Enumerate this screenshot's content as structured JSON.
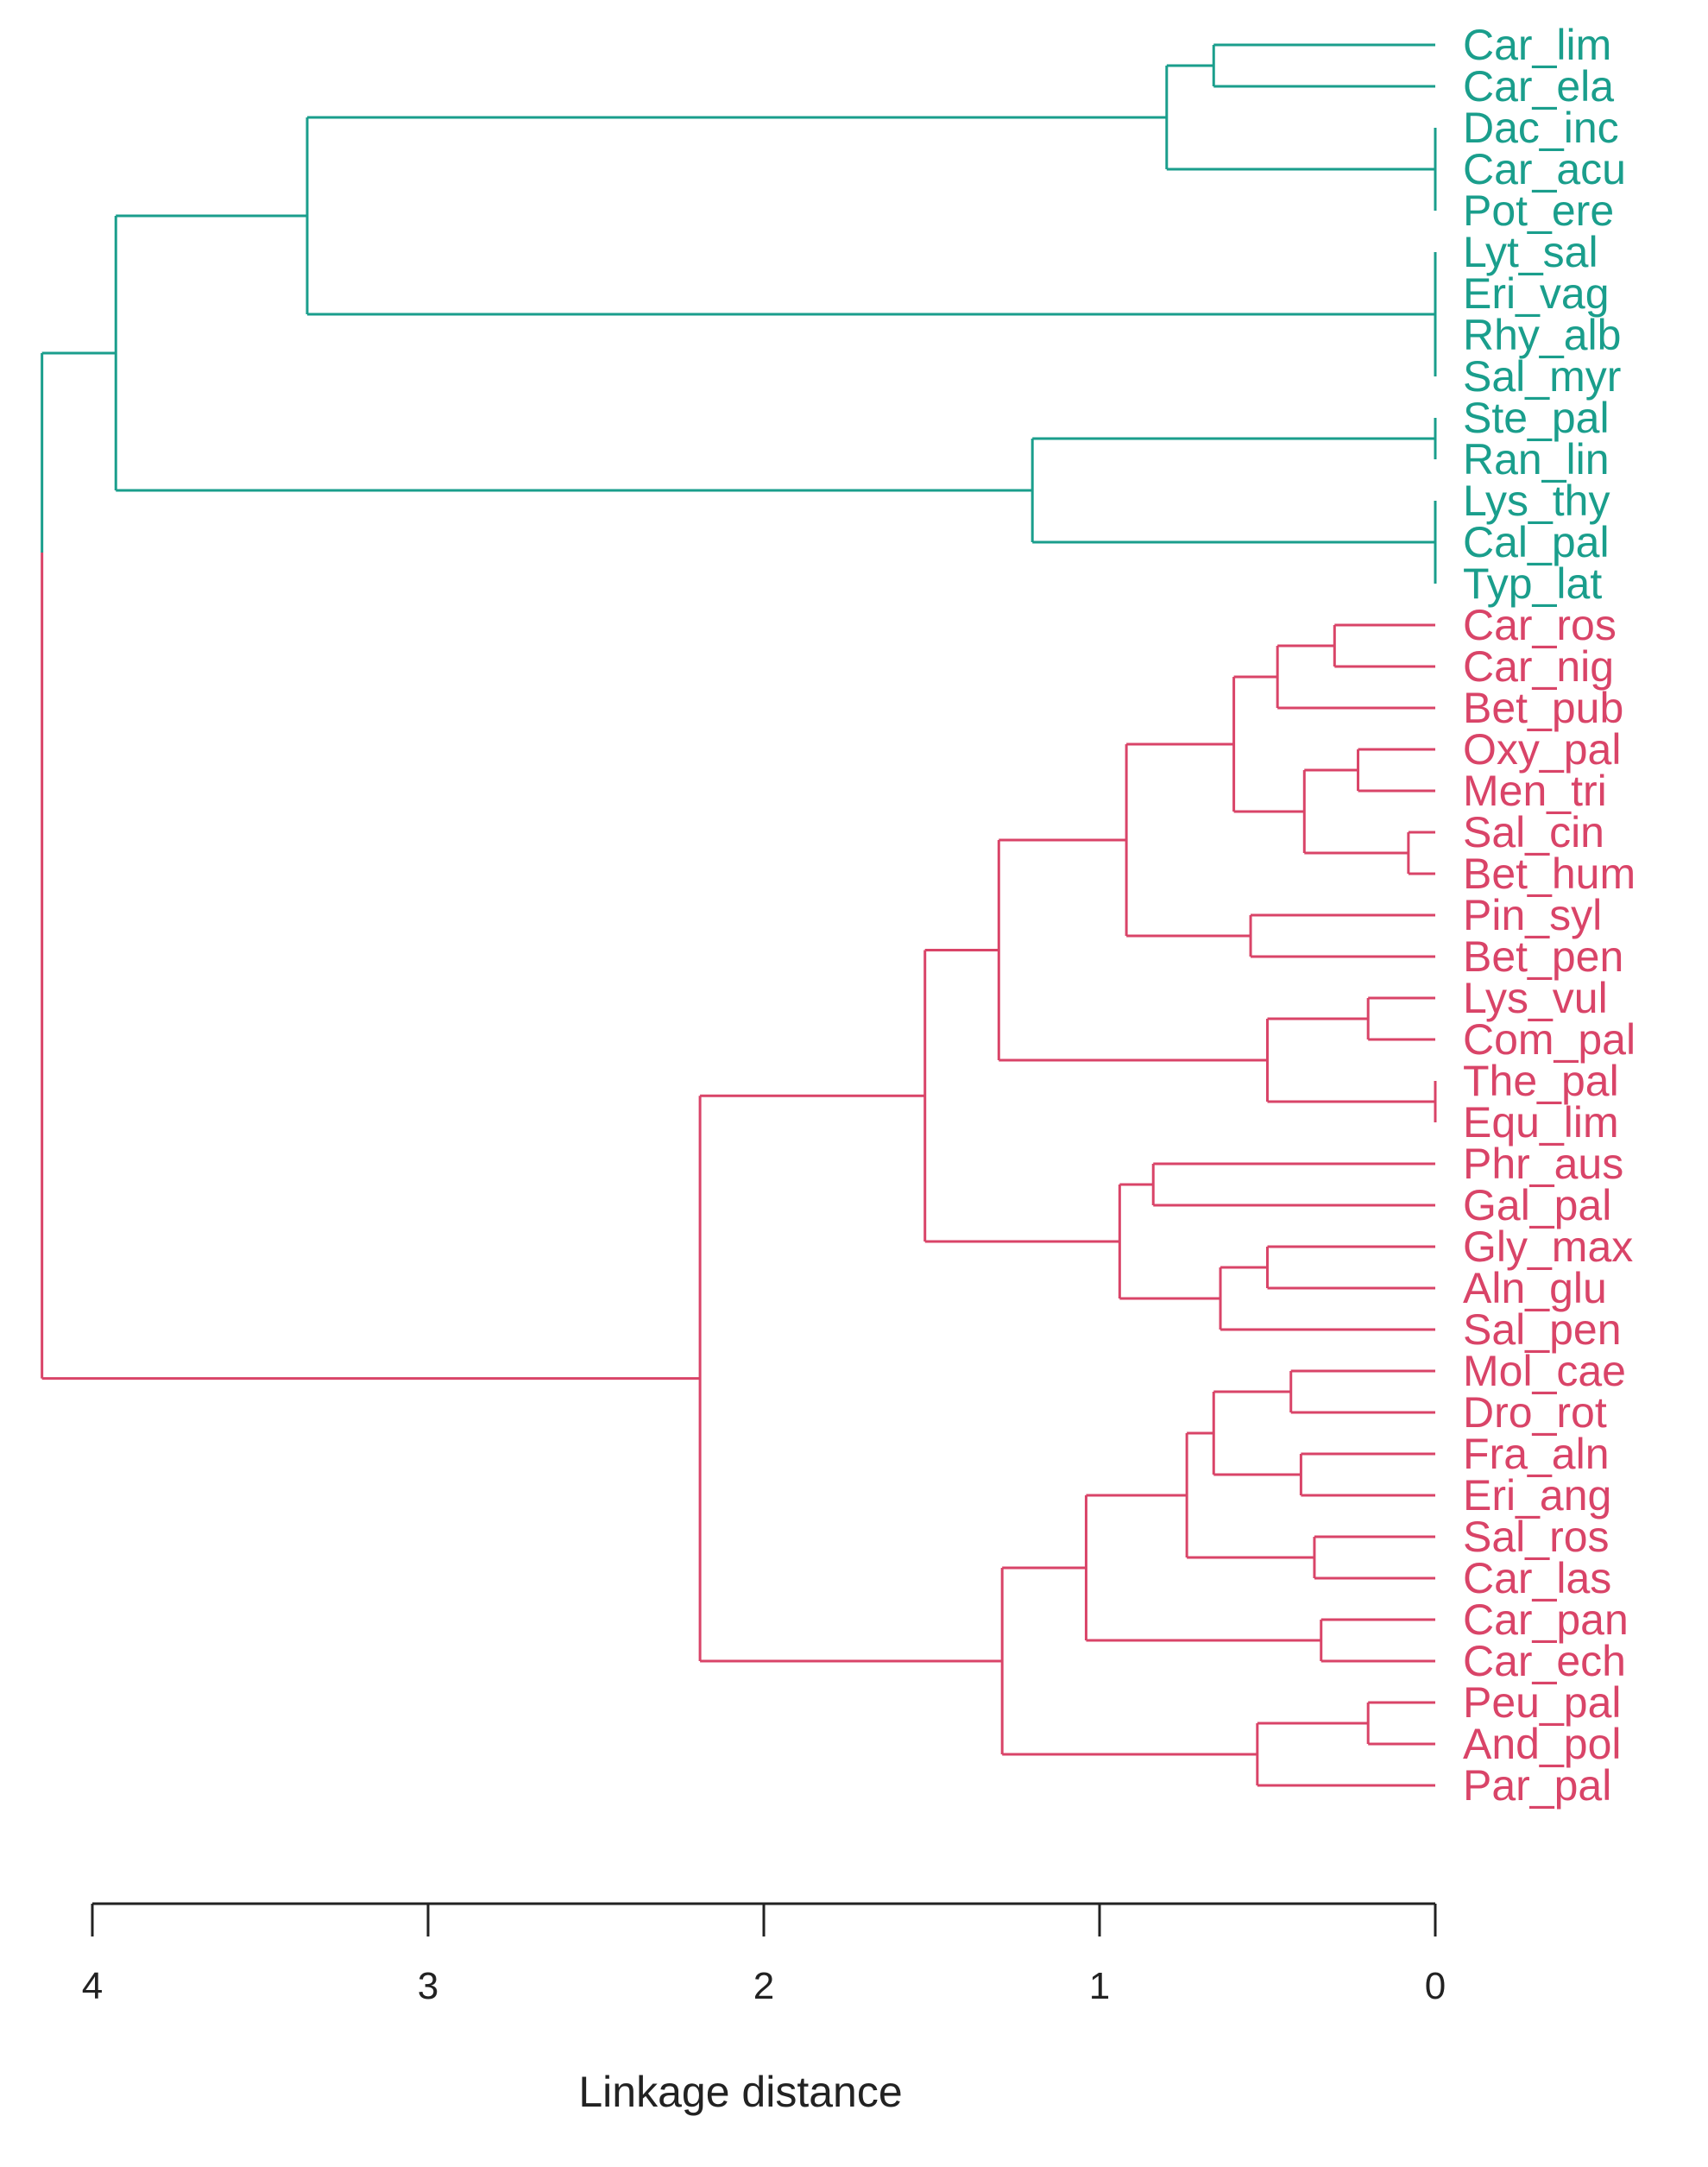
{
  "chart_data": {
    "type": "dendrogram",
    "orientation": "leaves-right",
    "xlabel": "Linkage distance",
    "xlim": [
      4.2,
      0
    ],
    "ticks": [
      4,
      3,
      2,
      1,
      0
    ],
    "colors": {
      "cluster_1": "#1a9e8c",
      "cluster_2": "#d94468",
      "axis": "#222222"
    },
    "leaves": [
      {
        "name": "Car_lim",
        "cluster": 1
      },
      {
        "name": "Car_ela",
        "cluster": 1
      },
      {
        "name": "Dac_inc",
        "cluster": 1
      },
      {
        "name": "Car_acu",
        "cluster": 1
      },
      {
        "name": "Pot_ere",
        "cluster": 1
      },
      {
        "name": "Lyt_sal",
        "cluster": 1
      },
      {
        "name": "Eri_vag",
        "cluster": 1
      },
      {
        "name": "Rhy_alb",
        "cluster": 1
      },
      {
        "name": "Sal_myr",
        "cluster": 1
      },
      {
        "name": "Ste_pal",
        "cluster": 1
      },
      {
        "name": "Ran_lin",
        "cluster": 1
      },
      {
        "name": "Lys_thy",
        "cluster": 1
      },
      {
        "name": "Cal_pal",
        "cluster": 1
      },
      {
        "name": "Typ_lat",
        "cluster": 1
      },
      {
        "name": "Car_ros",
        "cluster": 2
      },
      {
        "name": "Car_nig",
        "cluster": 2
      },
      {
        "name": "Bet_pub",
        "cluster": 2
      },
      {
        "name": "Oxy_pal",
        "cluster": 2
      },
      {
        "name": "Men_tri",
        "cluster": 2
      },
      {
        "name": "Sal_cin",
        "cluster": 2
      },
      {
        "name": "Bet_hum",
        "cluster": 2
      },
      {
        "name": "Pin_syl",
        "cluster": 2
      },
      {
        "name": "Bet_pen",
        "cluster": 2
      },
      {
        "name": "Lys_vul",
        "cluster": 2
      },
      {
        "name": "Com_pal",
        "cluster": 2
      },
      {
        "name": "The_pal",
        "cluster": 2
      },
      {
        "name": "Equ_lim",
        "cluster": 2
      },
      {
        "name": "Phr_aus",
        "cluster": 2
      },
      {
        "name": "Gal_pal",
        "cluster": 2
      },
      {
        "name": "Gly_max",
        "cluster": 2
      },
      {
        "name": "Aln_glu",
        "cluster": 2
      },
      {
        "name": "Sal_pen",
        "cluster": 2
      },
      {
        "name": "Mol_cae",
        "cluster": 2
      },
      {
        "name": "Dro_rot",
        "cluster": 2
      },
      {
        "name": "Fra_aln",
        "cluster": 2
      },
      {
        "name": "Eri_ang",
        "cluster": 2
      },
      {
        "name": "Sal_ros",
        "cluster": 2
      },
      {
        "name": "Car_las",
        "cluster": 2
      },
      {
        "name": "Car_pan",
        "cluster": 2
      },
      {
        "name": "Car_ech",
        "cluster": 2
      },
      {
        "name": "Peu_pal",
        "cluster": 2
      },
      {
        "name": "And_pol",
        "cluster": 2
      },
      {
        "name": "Par_pal",
        "cluster": 2
      }
    ],
    "merges": [
      {
        "id": "A1",
        "h": 0.66,
        "children": [
          "Car_lim",
          "Car_ela"
        ]
      },
      {
        "id": "A2",
        "h": 0,
        "children": [
          "Dac_inc",
          "Car_acu",
          "Pot_ere"
        ]
      },
      {
        "id": "A3",
        "h": 0.8,
        "children": [
          "A1",
          "A2"
        ]
      },
      {
        "id": "A4",
        "h": 0,
        "children": [
          "Lyt_sal",
          "Eri_vag",
          "Rhy_alb",
          "Sal_myr"
        ]
      },
      {
        "id": "A5",
        "h": 3.36,
        "children": [
          "A3",
          "A4"
        ]
      },
      {
        "id": "A6",
        "h": 0,
        "children": [
          "Ste_pal",
          "Ran_lin"
        ]
      },
      {
        "id": "A7",
        "h": 0,
        "children": [
          "Lys_thy",
          "Cal_pal",
          "Typ_lat"
        ]
      },
      {
        "id": "A8",
        "h": 1.2,
        "children": [
          "A6",
          "A7"
        ]
      },
      {
        "id": "A9",
        "h": 3.93,
        "children": [
          "A5",
          "A8"
        ]
      },
      {
        "id": "B1",
        "h": 0.3,
        "children": [
          "Car_ros",
          "Car_nig"
        ]
      },
      {
        "id": "B2",
        "h": 0.47,
        "children": [
          "B1",
          "Bet_pub"
        ]
      },
      {
        "id": "B3",
        "h": 0.23,
        "children": [
          "Oxy_pal",
          "Men_tri"
        ]
      },
      {
        "id": "B4",
        "h": 0.08,
        "children": [
          "Sal_cin",
          "Bet_hum"
        ]
      },
      {
        "id": "B5",
        "h": 0.39,
        "children": [
          "B3",
          "B4"
        ]
      },
      {
        "id": "B6",
        "h": 0.6,
        "children": [
          "B2",
          "B5"
        ]
      },
      {
        "id": "B7",
        "h": 0.55,
        "children": [
          "Pin_syl",
          "Bet_pen"
        ]
      },
      {
        "id": "B8",
        "h": 0.92,
        "children": [
          "B6",
          "B7"
        ]
      },
      {
        "id": "B9",
        "h": 0.2,
        "children": [
          "Lys_vul",
          "Com_pal"
        ]
      },
      {
        "id": "B10",
        "h": 0,
        "children": [
          "The_pal",
          "Equ_lim"
        ]
      },
      {
        "id": "B11",
        "h": 0.5,
        "children": [
          "B9",
          "B10"
        ]
      },
      {
        "id": "B12",
        "h": 1.3,
        "children": [
          "B8",
          "B11"
        ]
      },
      {
        "id": "B13",
        "h": 0.84,
        "children": [
          "Phr_aus",
          "Gal_pal"
        ]
      },
      {
        "id": "B14",
        "h": 0.5,
        "children": [
          "Gly_max",
          "Aln_glu"
        ]
      },
      {
        "id": "B15",
        "h": 0.64,
        "children": [
          "B14",
          "Sal_pen"
        ]
      },
      {
        "id": "B16",
        "h": 0.94,
        "children": [
          "B13",
          "B15"
        ]
      },
      {
        "id": "B17",
        "h": 1.52,
        "children": [
          "B12",
          "B16"
        ]
      },
      {
        "id": "B18",
        "h": 0.43,
        "children": [
          "Mol_cae",
          "Dro_rot"
        ]
      },
      {
        "id": "B19",
        "h": 0.4,
        "children": [
          "Fra_aln",
          "Eri_ang"
        ]
      },
      {
        "id": "B20",
        "h": 0.66,
        "children": [
          "B18",
          "B19"
        ]
      },
      {
        "id": "B21",
        "h": 0.36,
        "children": [
          "Sal_ros",
          "Car_las"
        ]
      },
      {
        "id": "B22",
        "h": 0.74,
        "children": [
          "B20",
          "B21"
        ]
      },
      {
        "id": "B23",
        "h": 0.34,
        "children": [
          "Car_pan",
          "Car_ech"
        ]
      },
      {
        "id": "B24",
        "h": 1.04,
        "children": [
          "B22",
          "B23"
        ]
      },
      {
        "id": "B25",
        "h": 0.2,
        "children": [
          "Peu_pal",
          "And_pol"
        ]
      },
      {
        "id": "B26",
        "h": 0.53,
        "children": [
          "B25",
          "Par_pal"
        ]
      },
      {
        "id": "B27",
        "h": 1.29,
        "children": [
          "B24",
          "B26"
        ]
      },
      {
        "id": "B28",
        "h": 2.19,
        "children": [
          "B17",
          "B27"
        ]
      },
      {
        "id": "ROOT",
        "h": 4.15,
        "children": [
          "A9",
          "B28"
        ]
      }
    ]
  }
}
